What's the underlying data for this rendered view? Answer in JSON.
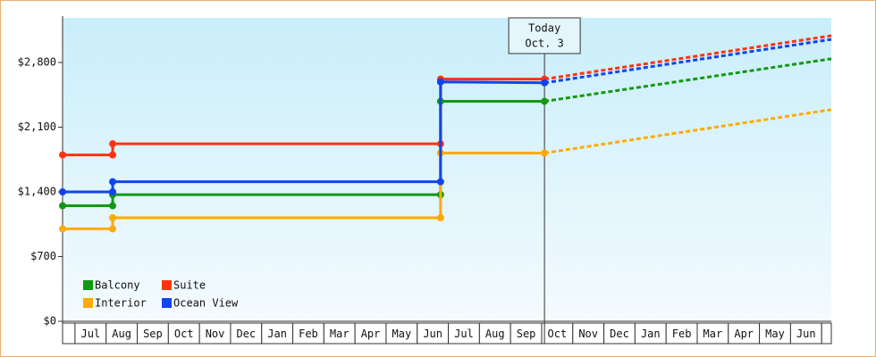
{
  "chart_data": {
    "type": "line",
    "categories": [
      "Jul",
      "Aug",
      "Sep",
      "Oct",
      "Nov",
      "Dec",
      "Jan",
      "Feb",
      "Mar",
      "Apr",
      "May",
      "Jun",
      "Jul",
      "Aug",
      "Sep",
      "Oct",
      "Nov",
      "Dec",
      "Jan",
      "Feb",
      "Mar",
      "Apr",
      "May",
      "Jun"
    ],
    "xlim": [
      -0.4,
      24.31
    ],
    "ylim": [
      0,
      3283
    ],
    "yticks": [
      {
        "value": 0,
        "label": "$0"
      },
      {
        "value": 700,
        "label": "$700"
      },
      {
        "value": 1400,
        "label": "$1,400"
      },
      {
        "value": 2100,
        "label": "$2,100"
      },
      {
        "value": 2800,
        "label": "$2,800"
      }
    ],
    "annotation": {
      "x": 15.09,
      "lines": [
        "Today",
        "Oct. 3"
      ]
    },
    "series": [
      {
        "name": "Balcony",
        "color": "#119911",
        "x": [
          -0.4,
          1.21,
          1.21,
          11.75,
          11.75,
          15.09
        ],
        "values": [
          1250,
          1250,
          1370,
          1370,
          2380,
          2380
        ],
        "forecast_x": [
          24.31
        ],
        "forecast_values": [
          2840
        ]
      },
      {
        "name": "Suite",
        "color": "#ff3311",
        "x": [
          -0.4,
          1.21,
          1.21,
          11.75,
          11.75,
          15.09
        ],
        "values": [
          1800,
          1800,
          1920,
          1920,
          2620,
          2620
        ],
        "forecast_x": [
          24.31
        ],
        "forecast_values": [
          3090
        ]
      },
      {
        "name": "Interior",
        "color": "#ffaa00",
        "x": [
          -0.4,
          1.21,
          1.21,
          11.75,
          11.75,
          15.09
        ],
        "values": [
          1000,
          1000,
          1120,
          1120,
          1820,
          1820
        ],
        "forecast_x": [
          24.31
        ],
        "forecast_values": [
          2290
        ]
      },
      {
        "name": "Ocean View",
        "color": "#1144ee",
        "x": [
          -0.4,
          1.21,
          1.21,
          11.75,
          11.75,
          15.09
        ],
        "values": [
          1400,
          1400,
          1510,
          1510,
          2590,
          2580
        ],
        "forecast_x": [
          24.31
        ],
        "forecast_values": [
          3050
        ]
      }
    ],
    "legend": "lower left"
  }
}
